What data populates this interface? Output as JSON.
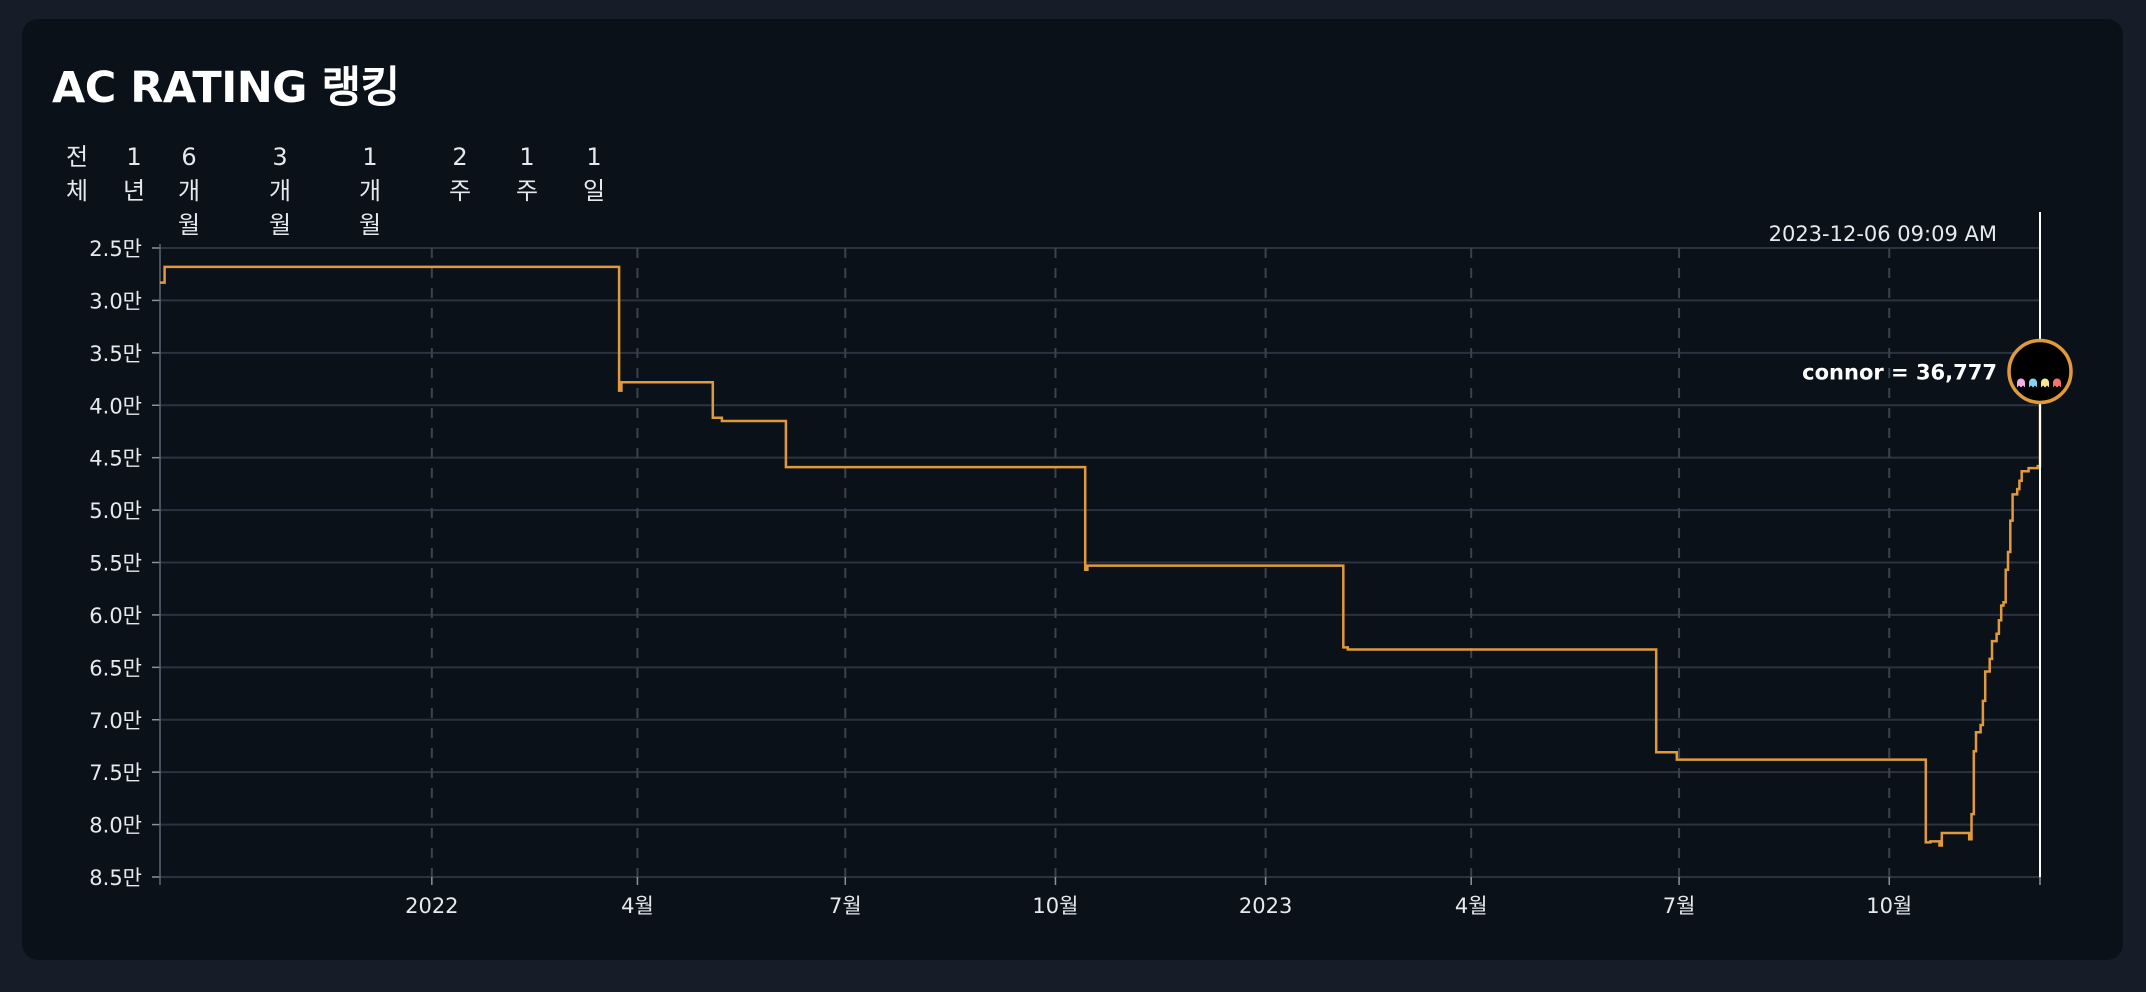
{
  "title": "AC RATING 랭킹",
  "ranges": [
    "전체",
    "1년",
    "6개월",
    "3개월",
    "1개월",
    "2주",
    "1주",
    "1일"
  ],
  "colors": {
    "background": "#161d28",
    "card": "#0b1119",
    "line": "#e09a3c",
    "grid": "#2b3340",
    "cursor": "#ffffff"
  },
  "hover": {
    "date": "2023-12-06 09:09 AM",
    "label": "connor = 36,777",
    "avatar": "pixel-ghosts-avatar"
  },
  "chart_data": {
    "type": "line",
    "step": true,
    "y_reversed": true,
    "ylim": [
      25000,
      85000
    ],
    "xlim": [
      "2021-09-04",
      "2023-12-06"
    ],
    "y_ticks": [
      {
        "value": 25000,
        "label": "2.5만"
      },
      {
        "value": 30000,
        "label": "3.0만"
      },
      {
        "value": 35000,
        "label": "3.5만"
      },
      {
        "value": 40000,
        "label": "4.0만"
      },
      {
        "value": 45000,
        "label": "4.5만"
      },
      {
        "value": 50000,
        "label": "5.0만"
      },
      {
        "value": 55000,
        "label": "5.5만"
      },
      {
        "value": 60000,
        "label": "6.0만"
      },
      {
        "value": 65000,
        "label": "6.5만"
      },
      {
        "value": 70000,
        "label": "7.0만"
      },
      {
        "value": 75000,
        "label": "7.5만"
      },
      {
        "value": 80000,
        "label": "8.0만"
      },
      {
        "value": 85000,
        "label": "8.5만"
      }
    ],
    "x_ticks": [
      {
        "date": "2022-01-01",
        "label": "2022"
      },
      {
        "date": "2022-04-01",
        "label": "4월"
      },
      {
        "date": "2022-07-01",
        "label": "7월"
      },
      {
        "date": "2022-10-01",
        "label": "10월"
      },
      {
        "date": "2023-01-01",
        "label": "2023"
      },
      {
        "date": "2023-04-01",
        "label": "4월"
      },
      {
        "date": "2023-07-01",
        "label": "7월"
      },
      {
        "date": "2023-10-01",
        "label": "10월"
      }
    ],
    "series": [
      {
        "name": "connor",
        "points": [
          [
            "2021-09-04",
            28300
          ],
          [
            "2021-09-06",
            26800
          ],
          [
            "2022-03-23",
            26800
          ],
          [
            "2022-03-24",
            38600
          ],
          [
            "2022-03-25",
            37800
          ],
          [
            "2022-05-03",
            37800
          ],
          [
            "2022-05-04",
            41200
          ],
          [
            "2022-05-08",
            41500
          ],
          [
            "2022-06-04",
            41500
          ],
          [
            "2022-06-05",
            45900
          ],
          [
            "2022-10-13",
            45900
          ],
          [
            "2022-10-14",
            55700
          ],
          [
            "2022-10-15",
            55300
          ],
          [
            "2023-02-03",
            55300
          ],
          [
            "2023-02-04",
            63100
          ],
          [
            "2023-02-06",
            63300
          ],
          [
            "2023-06-20",
            63300
          ],
          [
            "2023-06-21",
            73100
          ],
          [
            "2023-06-29",
            73100
          ],
          [
            "2023-06-30",
            73800
          ],
          [
            "2023-10-16",
            73800
          ],
          [
            "2023-10-17",
            81700
          ],
          [
            "2023-10-19",
            81600
          ],
          [
            "2023-10-22",
            81600
          ],
          [
            "2023-10-23",
            82000
          ],
          [
            "2023-10-24",
            80800
          ],
          [
            "2023-11-04",
            80800
          ],
          [
            "2023-11-05",
            81400
          ],
          [
            "2023-11-06",
            79000
          ],
          [
            "2023-11-07",
            73000
          ],
          [
            "2023-11-08",
            71200
          ],
          [
            "2023-11-10",
            70500
          ],
          [
            "2023-11-11",
            68200
          ],
          [
            "2023-11-12",
            65400
          ],
          [
            "2023-11-14",
            64200
          ],
          [
            "2023-11-15",
            62500
          ],
          [
            "2023-11-17",
            61800
          ],
          [
            "2023-11-18",
            60500
          ],
          [
            "2023-11-19",
            59100
          ],
          [
            "2023-11-20",
            58800
          ],
          [
            "2023-11-21",
            55700
          ],
          [
            "2023-11-22",
            54000
          ],
          [
            "2023-11-23",
            51000
          ],
          [
            "2023-11-24",
            48500
          ],
          [
            "2023-11-26",
            48000
          ],
          [
            "2023-11-27",
            47200
          ],
          [
            "2023-11-28",
            46300
          ],
          [
            "2023-12-01",
            46000
          ],
          [
            "2023-12-05",
            45800
          ],
          [
            "2023-12-06",
            36777
          ]
        ]
      }
    ]
  }
}
